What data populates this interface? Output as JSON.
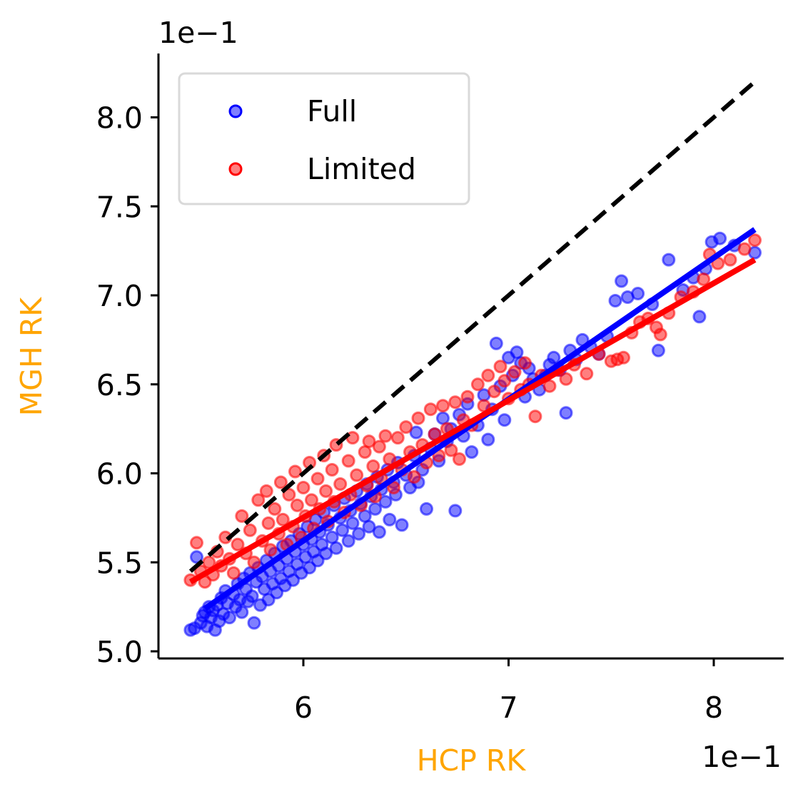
{
  "chart_data": {
    "type": "scatter",
    "xlabel": "HCP RK",
    "ylabel": "MGH RK",
    "x_offset_label": "1e−1",
    "y_offset_label": "1e−1",
    "xlim": [
      5.3,
      8.35
    ],
    "ylim": [
      4.97,
      8.35
    ],
    "x_ticks": [
      6,
      7,
      8
    ],
    "x_tick_labels": [
      "6",
      "7",
      "8"
    ],
    "y_ticks": [
      5.0,
      5.5,
      6.0,
      6.5,
      7.0,
      7.5,
      8.0
    ],
    "y_tick_labels": [
      "5.0",
      "5.5",
      "6.0",
      "6.5",
      "7.0",
      "7.5",
      "8.0"
    ],
    "axis_label_color": "#ffa500",
    "grid": false,
    "legend": {
      "position": "top-left",
      "entries": [
        "Full",
        "Limited"
      ]
    },
    "identity_line": {
      "x": [
        5.45,
        8.2
      ],
      "y": [
        5.45,
        8.2
      ],
      "color": "#000000",
      "style": "dashed"
    },
    "series": [
      {
        "name": "Full",
        "color": "#0000ff",
        "fit_line": {
          "x": [
            5.52,
            8.2
          ],
          "y": [
            5.24,
            7.37
          ]
        },
        "points": [
          [
            5.45,
            5.12
          ],
          [
            5.47,
            5.13
          ],
          [
            5.48,
            5.53
          ],
          [
            5.5,
            5.16
          ],
          [
            5.51,
            5.2
          ],
          [
            5.52,
            5.22
          ],
          [
            5.53,
            5.14
          ],
          [
            5.54,
            5.25
          ],
          [
            5.55,
            5.19
          ],
          [
            5.56,
            5.23
          ],
          [
            5.57,
            5.12
          ],
          [
            5.58,
            5.26
          ],
          [
            5.59,
            5.17
          ],
          [
            5.6,
            5.3
          ],
          [
            5.61,
            5.21
          ],
          [
            5.62,
            5.34
          ],
          [
            5.63,
            5.27
          ],
          [
            5.64,
            5.19
          ],
          [
            5.66,
            5.32
          ],
          [
            5.67,
            5.25
          ],
          [
            5.68,
            5.38
          ],
          [
            5.69,
            5.29
          ],
          [
            5.7,
            5.22
          ],
          [
            5.71,
            5.41
          ],
          [
            5.72,
            5.35
          ],
          [
            5.73,
            5.28
          ],
          [
            5.74,
            5.44
          ],
          [
            5.75,
            5.31
          ],
          [
            5.76,
            5.16
          ],
          [
            5.77,
            5.39
          ],
          [
            5.78,
            5.47
          ],
          [
            5.79,
            5.26
          ],
          [
            5.8,
            5.42
          ],
          [
            5.81,
            5.35
          ],
          [
            5.82,
            5.51
          ],
          [
            5.83,
            5.29
          ],
          [
            5.84,
            5.45
          ],
          [
            5.85,
            5.38
          ],
          [
            5.86,
            5.55
          ],
          [
            5.87,
            5.33
          ],
          [
            5.88,
            5.48
          ],
          [
            5.89,
            5.41
          ],
          [
            5.9,
            5.59
          ],
          [
            5.91,
            5.37
          ],
          [
            5.92,
            5.52
          ],
          [
            5.93,
            5.45
          ],
          [
            5.94,
            5.62
          ],
          [
            5.95,
            5.4
          ],
          [
            5.96,
            5.56
          ],
          [
            5.97,
            5.49
          ],
          [
            5.98,
            5.66
          ],
          [
            5.99,
            5.44
          ],
          [
            6.0,
            5.6
          ],
          [
            6.01,
            5.53
          ],
          [
            6.02,
            5.7
          ],
          [
            6.03,
            5.47
          ],
          [
            6.04,
            5.63
          ],
          [
            6.05,
            5.56
          ],
          [
            6.06,
            5.74
          ],
          [
            6.07,
            5.51
          ],
          [
            6.08,
            5.67
          ],
          [
            6.09,
            5.6
          ],
          [
            6.1,
            5.78
          ],
          [
            6.11,
            5.55
          ],
          [
            6.12,
            5.71
          ],
          [
            6.14,
            5.64
          ],
          [
            6.15,
            5.82
          ],
          [
            6.16,
            5.58
          ],
          [
            6.18,
            5.75
          ],
          [
            6.19,
            5.68
          ],
          [
            6.2,
            5.86
          ],
          [
            6.22,
            5.62
          ],
          [
            6.23,
            5.79
          ],
          [
            6.24,
            5.72
          ],
          [
            6.26,
            5.9
          ],
          [
            6.27,
            5.66
          ],
          [
            6.28,
            5.83
          ],
          [
            6.3,
            5.76
          ],
          [
            6.31,
            5.94
          ],
          [
            6.32,
            5.7
          ],
          [
            6.33,
            5.87
          ],
          [
            6.35,
            5.8
          ],
          [
            6.36,
            5.98
          ],
          [
            6.37,
            5.67
          ],
          [
            6.38,
            5.91
          ],
          [
            6.4,
            5.84
          ],
          [
            6.41,
            6.02
          ],
          [
            6.42,
            5.74
          ],
          [
            6.44,
            5.95
          ],
          [
            6.45,
            5.88
          ],
          [
            6.46,
            6.06
          ],
          [
            6.48,
            5.71
          ],
          [
            6.5,
            5.99
          ],
          [
            6.52,
            5.92
          ],
          [
            6.54,
            6.1
          ],
          [
            6.55,
            6.23
          ],
          [
            6.56,
            5.95
          ],
          [
            6.58,
            6.02
          ],
          [
            6.6,
            5.8
          ],
          [
            6.62,
            6.14
          ],
          [
            6.64,
            6.22
          ],
          [
            6.66,
            6.07
          ],
          [
            6.68,
            6.31
          ],
          [
            6.7,
            6.18
          ],
          [
            6.72,
            6.25
          ],
          [
            6.74,
            5.79
          ],
          [
            6.76,
            6.33
          ],
          [
            6.78,
            6.21
          ],
          [
            6.8,
            6.39
          ],
          [
            6.82,
            6.12
          ],
          [
            6.85,
            6.27
          ],
          [
            6.88,
            6.44
          ],
          [
            6.9,
            6.19
          ],
          [
            6.92,
            6.36
          ],
          [
            6.94,
            6.73
          ],
          [
            6.96,
            6.49
          ],
          [
            6.98,
            6.3
          ],
          [
            7.0,
            6.65
          ],
          [
            7.02,
            6.55
          ],
          [
            7.04,
            6.68
          ],
          [
            7.06,
            6.62
          ],
          [
            7.08,
            6.43
          ],
          [
            7.1,
            6.59
          ],
          [
            7.12,
            6.53
          ],
          [
            7.15,
            6.47
          ],
          [
            7.18,
            6.55
          ],
          [
            7.2,
            6.61
          ],
          [
            7.22,
            6.65
          ],
          [
            7.25,
            6.58
          ],
          [
            7.28,
            6.34
          ],
          [
            7.3,
            6.69
          ],
          [
            7.33,
            6.64
          ],
          [
            7.36,
            6.75
          ],
          [
            7.4,
            6.71
          ],
          [
            7.44,
            6.67
          ],
          [
            7.48,
            6.77
          ],
          [
            7.52,
            6.97
          ],
          [
            7.55,
            7.08
          ],
          [
            7.58,
            6.99
          ],
          [
            7.63,
            7.01
          ],
          [
            7.7,
            6.95
          ],
          [
            7.73,
            6.69
          ],
          [
            7.78,
            7.2
          ],
          [
            7.85,
            7.03
          ],
          [
            7.9,
            7.1
          ],
          [
            7.93,
            6.88
          ],
          [
            7.96,
            7.15
          ],
          [
            7.99,
            7.3
          ],
          [
            8.03,
            7.32
          ],
          [
            8.1,
            7.28
          ],
          [
            8.2,
            7.24
          ]
        ]
      },
      {
        "name": "Limited",
        "color": "#ff0000",
        "fit_line": {
          "x": [
            5.45,
            8.2
          ],
          "y": [
            5.39,
            7.2
          ]
        },
        "points": [
          [
            5.45,
            5.4
          ],
          [
            5.48,
            5.61
          ],
          [
            5.5,
            5.45
          ],
          [
            5.52,
            5.39
          ],
          [
            5.54,
            5.5
          ],
          [
            5.56,
            5.43
          ],
          [
            5.58,
            5.56
          ],
          [
            5.6,
            5.48
          ],
          [
            5.62,
            5.64
          ],
          [
            5.64,
            5.52
          ],
          [
            5.66,
            5.44
          ],
          [
            5.68,
            5.6
          ],
          [
            5.7,
            5.76
          ],
          [
            5.72,
            5.55
          ],
          [
            5.74,
            5.68
          ],
          [
            5.76,
            5.5
          ],
          [
            5.78,
            5.85
          ],
          [
            5.8,
            5.62
          ],
          [
            5.82,
            5.9
          ],
          [
            5.83,
            5.72
          ],
          [
            5.84,
            5.57
          ],
          [
            5.86,
            5.8
          ],
          [
            5.88,
            5.66
          ],
          [
            5.89,
            5.95
          ],
          [
            5.9,
            5.74
          ],
          [
            5.92,
            5.6
          ],
          [
            5.93,
            5.88
          ],
          [
            5.95,
            5.7
          ],
          [
            5.96,
            6.01
          ],
          [
            5.97,
            5.82
          ],
          [
            5.99,
            5.64
          ],
          [
            6.0,
            5.92
          ],
          [
            6.01,
            5.76
          ],
          [
            6.03,
            6.06
          ],
          [
            6.04,
            5.85
          ],
          [
            6.05,
            5.69
          ],
          [
            6.07,
            5.97
          ],
          [
            6.08,
            5.8
          ],
          [
            6.1,
            6.1
          ],
          [
            6.11,
            5.9
          ],
          [
            6.12,
            5.73
          ],
          [
            6.14,
            6.02
          ],
          [
            6.15,
            5.84
          ],
          [
            6.16,
            6.16
          ],
          [
            6.18,
            5.94
          ],
          [
            6.2,
            5.78
          ],
          [
            6.22,
            6.07
          ],
          [
            6.23,
            5.88
          ],
          [
            6.24,
            6.2
          ],
          [
            6.26,
            5.99
          ],
          [
            6.28,
            5.82
          ],
          [
            6.3,
            6.12
          ],
          [
            6.31,
            5.93
          ],
          [
            6.32,
            6.18
          ],
          [
            6.34,
            6.04
          ],
          [
            6.35,
            5.87
          ],
          [
            6.37,
            6.15
          ],
          [
            6.38,
            5.97
          ],
          [
            6.4,
            6.21
          ],
          [
            6.42,
            6.08
          ],
          [
            6.44,
            5.92
          ],
          [
            6.46,
            6.2
          ],
          [
            6.48,
            6.02
          ],
          [
            6.5,
            6.26
          ],
          [
            6.52,
            6.12
          ],
          [
            6.54,
            5.98
          ],
          [
            6.56,
            6.31
          ],
          [
            6.58,
            6.16
          ],
          [
            6.6,
            6.06
          ],
          [
            6.62,
            6.36
          ],
          [
            6.64,
            6.22
          ],
          [
            6.66,
            6.1
          ],
          [
            6.68,
            6.38
          ],
          [
            6.7,
            6.25
          ],
          [
            6.72,
            6.13
          ],
          [
            6.74,
            6.4
          ],
          [
            6.76,
            6.08
          ],
          [
            6.78,
            6.3
          ],
          [
            6.8,
            6.43
          ],
          [
            6.82,
            6.27
          ],
          [
            6.85,
            6.5
          ],
          [
            6.88,
            6.38
          ],
          [
            6.9,
            6.55
          ],
          [
            6.93,
            6.46
          ],
          [
            6.96,
            6.6
          ],
          [
            6.98,
            6.52
          ],
          [
            7.0,
            6.42
          ],
          [
            7.03,
            6.57
          ],
          [
            7.06,
            6.47
          ],
          [
            7.08,
            6.62
          ],
          [
            7.1,
            6.5
          ],
          [
            7.13,
            6.32
          ],
          [
            7.16,
            6.55
          ],
          [
            7.2,
            6.49
          ],
          [
            7.24,
            6.58
          ],
          [
            7.28,
            6.53
          ],
          [
            7.32,
            6.61
          ],
          [
            7.38,
            6.56
          ],
          [
            7.44,
            6.67
          ],
          [
            7.5,
            6.63
          ],
          [
            7.53,
            6.64
          ],
          [
            7.56,
            6.65
          ],
          [
            7.6,
            6.79
          ],
          [
            7.64,
            6.85
          ],
          [
            7.68,
            6.87
          ],
          [
            7.72,
            6.82
          ],
          [
            7.74,
            6.78
          ],
          [
            7.78,
            6.9
          ],
          [
            7.84,
            6.99
          ],
          [
            7.9,
            7.02
          ],
          [
            7.95,
            7.09
          ],
          [
            7.98,
            7.23
          ],
          [
            8.02,
            7.18
          ],
          [
            8.08,
            7.2
          ],
          [
            8.15,
            7.26
          ],
          [
            8.2,
            7.31
          ]
        ]
      }
    ]
  }
}
